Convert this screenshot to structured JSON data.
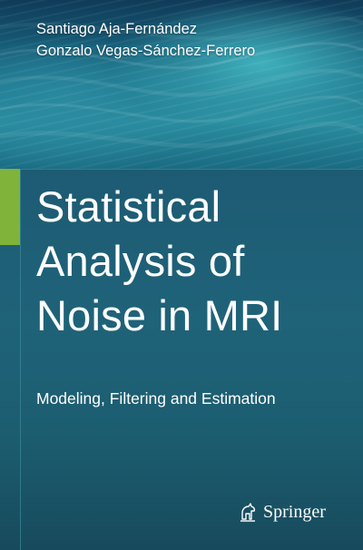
{
  "authors": [
    "Santiago Aja-Fernández",
    "Gonzalo Vegas-Sánchez-Ferrero"
  ],
  "title_lines": [
    "Statistical",
    "Analysis of",
    "Noise in MRI"
  ],
  "subtitle": "Modeling, Filtering and Estimation",
  "publisher": {
    "name": "Springer",
    "icon": "springer-horse-icon"
  },
  "colors": {
    "panel": "#1f6379",
    "accent": "#7fb33a",
    "text": "#ffffff"
  }
}
